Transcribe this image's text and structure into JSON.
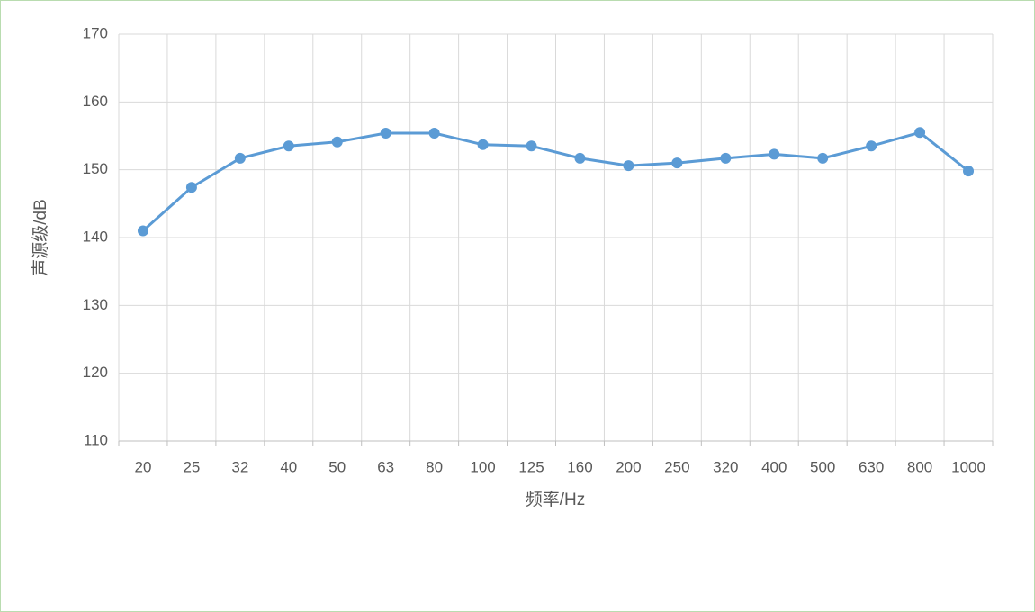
{
  "chart_data": {
    "type": "line",
    "x_label": "频率/Hz",
    "y_label": "声源级/dB",
    "categories": [
      "20",
      "25",
      "32",
      "40",
      "50",
      "63",
      "80",
      "100",
      "125",
      "160",
      "200",
      "250",
      "320",
      "400",
      "500",
      "630",
      "800",
      "1000"
    ],
    "series": [
      {
        "name": "声源级",
        "color": "#5b9bd5",
        "values": [
          141,
          147.4,
          151.7,
          153.5,
          154.1,
          155.4,
          155.4,
          153.7,
          153.5,
          151.7,
          150.6,
          151.0,
          151.7,
          152.3,
          151.7,
          153.5,
          155.5,
          149.8
        ]
      }
    ],
    "ylim": [
      110,
      170
    ],
    "yticks": [
      110,
      120,
      130,
      140,
      150,
      160,
      170
    ],
    "grid": true
  }
}
